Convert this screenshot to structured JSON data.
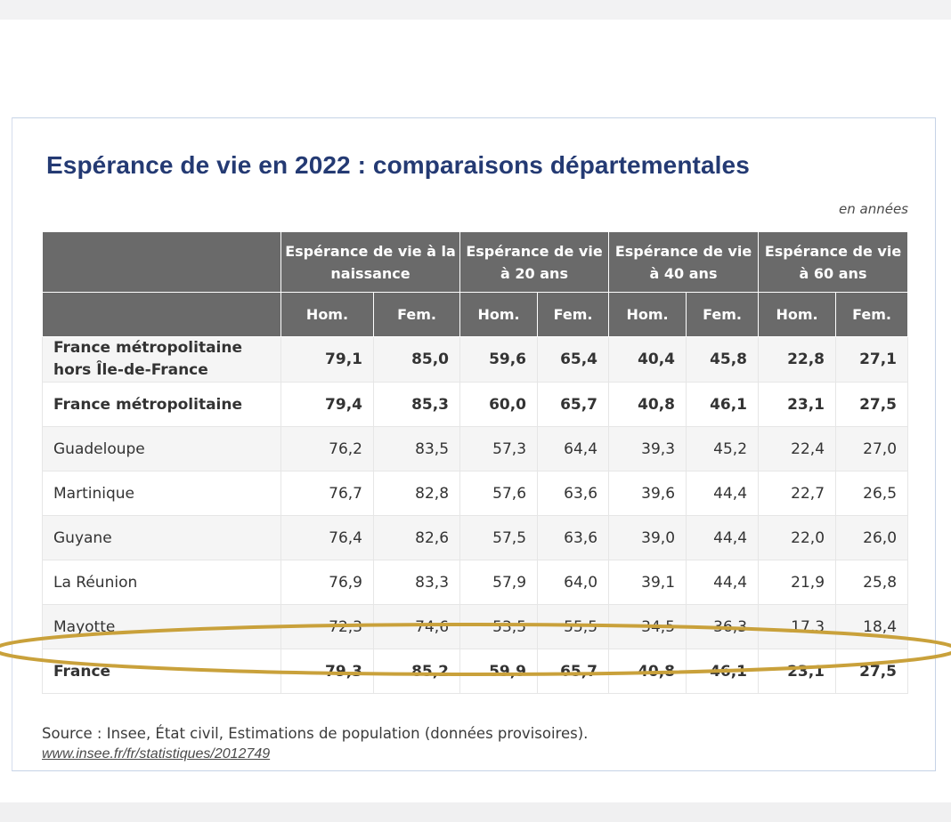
{
  "title": "Espérance de vie en 2022 : comparaisons départementales",
  "unit": "en années",
  "headers": {
    "groups": [
      "Espérance de vie à la naissance",
      "Espérance de vie à 20 ans",
      "Espérance de vie à 40 ans",
      "Espérance de vie à 60 ans"
    ],
    "sub": [
      "Hom.",
      "Fem.",
      "Hom.",
      "Fem.",
      "Hom.",
      "Fem.",
      "Hom.",
      "Fem."
    ]
  },
  "rows": [
    {
      "label": "France métropolitaine hors Île-de-France",
      "values": [
        "79,1",
        "85,0",
        "59,6",
        "65,4",
        "40,4",
        "45,8",
        "22,8",
        "27,1"
      ]
    },
    {
      "label": "France métropolitaine",
      "values": [
        "79,4",
        "85,3",
        "60,0",
        "65,7",
        "40,8",
        "46,1",
        "23,1",
        "27,5"
      ]
    },
    {
      "label": "Guadeloupe",
      "values": [
        "76,2",
        "83,5",
        "57,3",
        "64,4",
        "39,3",
        "45,2",
        "22,4",
        "27,0"
      ]
    },
    {
      "label": "Martinique",
      "values": [
        "76,7",
        "82,8",
        "57,6",
        "63,6",
        "39,6",
        "44,4",
        "22,7",
        "26,5"
      ]
    },
    {
      "label": "Guyane",
      "values": [
        "76,4",
        "82,6",
        "57,5",
        "63,6",
        "39,0",
        "44,4",
        "22,0",
        "26,0"
      ]
    },
    {
      "label": "La Réunion",
      "values": [
        "76,9",
        "83,3",
        "57,9",
        "64,0",
        "39,1",
        "44,4",
        "21,9",
        "25,8"
      ]
    },
    {
      "label": "Mayotte",
      "values": [
        "72,3",
        "74,6",
        "53,5",
        "55,5",
        "34,5",
        "36,3",
        "17,3",
        "18,4"
      ]
    },
    {
      "label": "France",
      "values": [
        "79,3",
        "85,2",
        "59,9",
        "65,7",
        "40,8",
        "46,1",
        "23,1",
        "27,5"
      ]
    }
  ],
  "source": "Source : Insee, État civil, Estimations de population (données provisoires).",
  "link": "www.insee.fr/fr/statistiques/2012749",
  "colors": {
    "title": "#243a73",
    "header_bg": "#6a6a6a",
    "highlight_ellipse": "#c9a13b"
  }
}
